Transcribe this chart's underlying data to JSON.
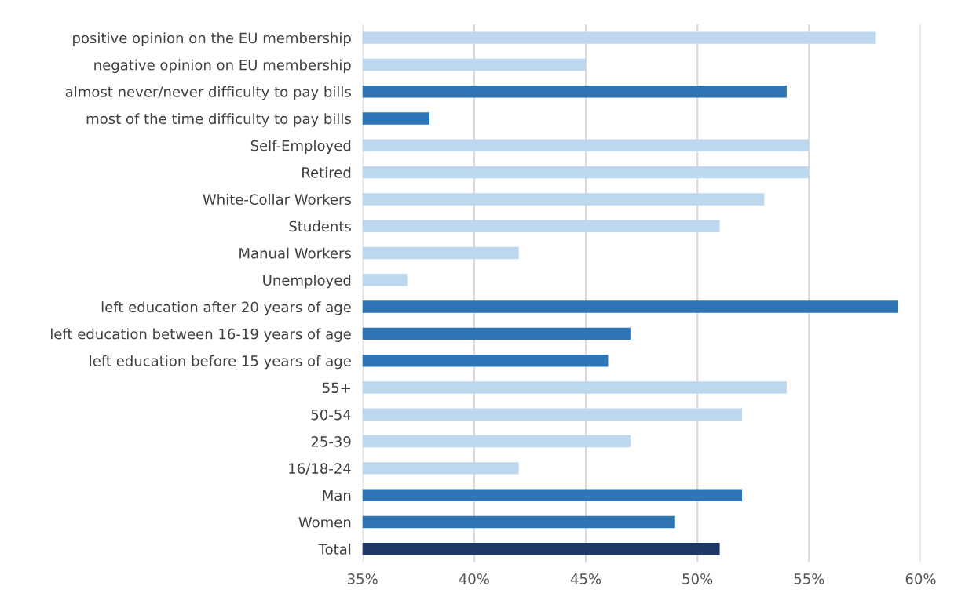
{
  "chart_data": {
    "type": "bar",
    "orientation": "horizontal",
    "categories": [
      "positive opinion on the EU membership",
      "negative opinion on EU membership",
      "almost never/never difficulty to pay bills",
      "most of the time difficulty to pay bills",
      "Self-Employed",
      "Retired",
      "White-Collar Workers",
      "Students",
      "Manual Workers",
      "Unemployed",
      "left education after 20 years of age",
      "left education between 16-19 years of age",
      "left education before 15 years of age",
      "55+",
      "50-54",
      "25-39",
      "16/18-24",
      "Man",
      "Women",
      "Total"
    ],
    "values": [
      58,
      45,
      54,
      38,
      55,
      55,
      53,
      51,
      42,
      37,
      59,
      47,
      46,
      54,
      52,
      47,
      42,
      52,
      49,
      51
    ],
    "colors": [
      "#bdd7ee",
      "#bdd7ee",
      "#2e75b6",
      "#2e75b6",
      "#bdd7ee",
      "#bdd7ee",
      "#bdd7ee",
      "#bdd7ee",
      "#bdd7ee",
      "#bdd7ee",
      "#2e75b6",
      "#2e75b6",
      "#2e75b6",
      "#bdd7ee",
      "#bdd7ee",
      "#bdd7ee",
      "#bdd7ee",
      "#2e75b6",
      "#2e75b6",
      "#1f3864"
    ],
    "xlim": [
      35,
      60
    ],
    "xticks": [
      {
        "value": 35,
        "label": "35%"
      },
      {
        "value": 40,
        "label": "40%"
      },
      {
        "value": 45,
        "label": "45%"
      },
      {
        "value": 50,
        "label": "50%"
      },
      {
        "value": 55,
        "label": "55%"
      },
      {
        "value": 60,
        "label": "60%"
      }
    ],
    "grid": "x"
  }
}
